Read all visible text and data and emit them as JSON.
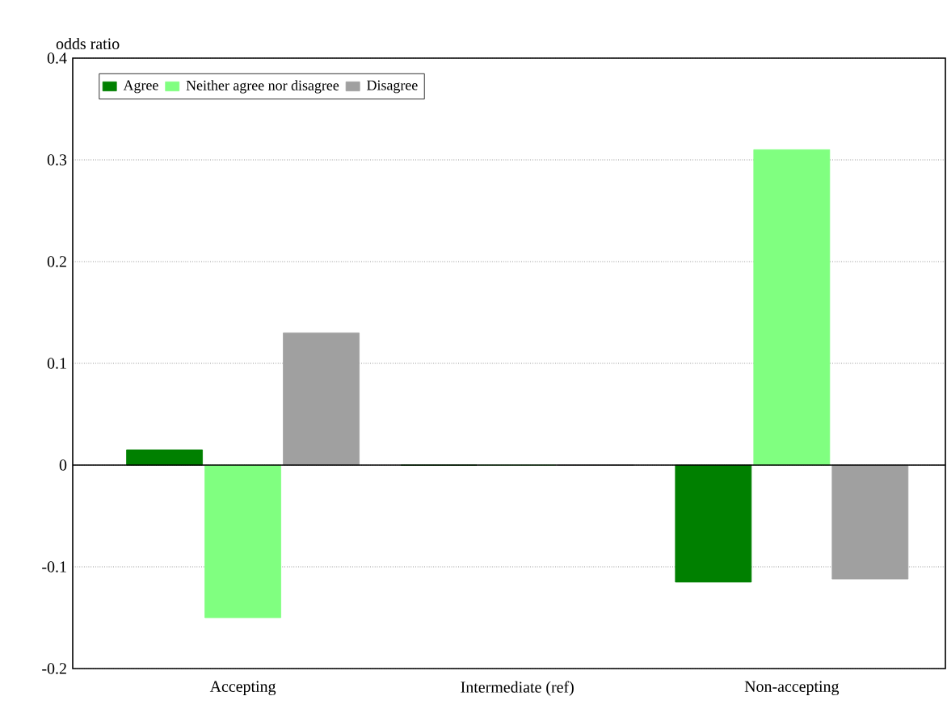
{
  "chart_data": {
    "type": "bar",
    "ylabel": "odds ratio",
    "categories": [
      "Accepting",
      "Intermediate (ref)",
      "Non-accepting"
    ],
    "series": [
      {
        "name": "Agree",
        "color": "#008000",
        "values": [
          0.015,
          0,
          -0.115
        ]
      },
      {
        "name": "Neither agree nor disagree",
        "color": "#80ff80",
        "values": [
          -0.15,
          0,
          0.31
        ]
      },
      {
        "name": "Disagree",
        "color": "#a0a0a0",
        "values": [
          0.13,
          0,
          -0.112
        ]
      }
    ],
    "ylim": [
      -0.2,
      0.4
    ],
    "yticks": [
      -0.2,
      -0.1,
      0,
      0.1,
      0.2,
      0.3,
      0.4
    ],
    "grid": "y",
    "legend": "top left"
  }
}
